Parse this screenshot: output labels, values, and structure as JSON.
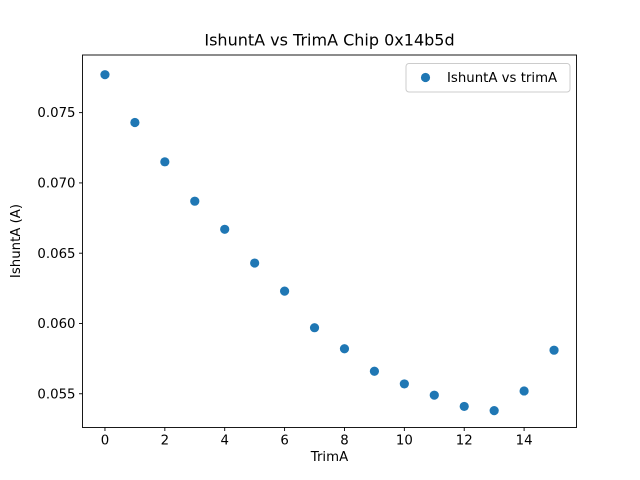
{
  "figure": {
    "background": "#ffffff",
    "spine_color": "#000000",
    "text_color": "#000000"
  },
  "chart_data": {
    "type": "scatter",
    "title": "IshuntA vs TrimA Chip 0x14b5d",
    "xlabel": "TrimA",
    "ylabel": "IshuntA (A)",
    "x": [
      0,
      1,
      2,
      3,
      4,
      5,
      6,
      7,
      8,
      9,
      10,
      11,
      12,
      13,
      14,
      15
    ],
    "y": [
      0.0777,
      0.0743,
      0.0715,
      0.0687,
      0.0667,
      0.0643,
      0.0623,
      0.0597,
      0.0582,
      0.0566,
      0.0557,
      0.0549,
      0.0541,
      0.0538,
      0.0552,
      0.0581
    ],
    "series": [
      {
        "name": "IshuntA vs trimA",
        "marker": "circle",
        "color": "#1f77b4"
      }
    ],
    "marker_color": "#1f77b4",
    "xlim": [
      -0.75,
      15.75
    ],
    "ylim": [
      0.0526,
      0.0791
    ],
    "xticks": [
      0,
      2,
      4,
      6,
      8,
      10,
      12,
      14
    ],
    "xtick_labels": [
      "0",
      "2",
      "4",
      "6",
      "8",
      "10",
      "12",
      "14"
    ],
    "yticks": [
      0.055,
      0.06,
      0.065,
      0.07,
      0.075
    ],
    "ytick_labels": [
      "0.055",
      "0.060",
      "0.065",
      "0.070",
      "0.075"
    ],
    "grid": false,
    "legend": {
      "position": "upper right",
      "border_color": "#cccccc",
      "background": "#ffffff",
      "entries": [
        {
          "label": "IshuntA vs trimA",
          "marker_color": "#1f77b4"
        }
      ]
    }
  }
}
